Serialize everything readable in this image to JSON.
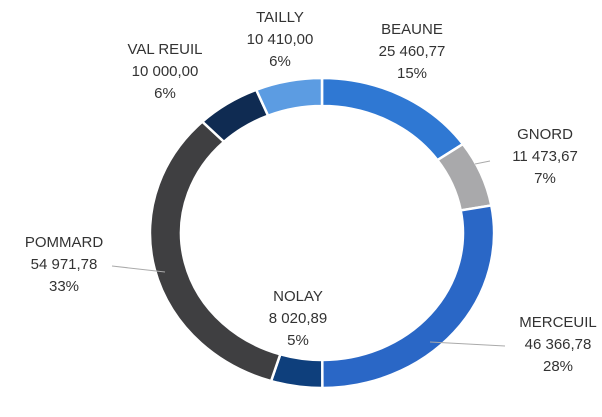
{
  "chart_data": {
    "type": "donut",
    "categories": [
      "BEAUNE",
      "GNORD",
      "MERCEUIL",
      "NOLAY",
      "POMMARD",
      "VAL REUIL",
      "TAILLY"
    ],
    "values": [
      25460.77,
      11473.67,
      46366.78,
      8020.89,
      54971.78,
      10000.0,
      10410.0
    ],
    "value_labels": [
      "25 460,77",
      "11 473,67",
      "46 366,78",
      "8 020,89",
      "54 971,78",
      "10 000,00",
      "10 410,00"
    ],
    "percent_labels": [
      "15%",
      "7%",
      "28%",
      "5%",
      "33%",
      "6%",
      "6%"
    ],
    "colors": [
      "#2f78d3",
      "#a9a9ab",
      "#2a67c6",
      "#0e3f7c",
      "#3f3f41",
      "#0f2b52",
      "#5c9ce2"
    ]
  }
}
